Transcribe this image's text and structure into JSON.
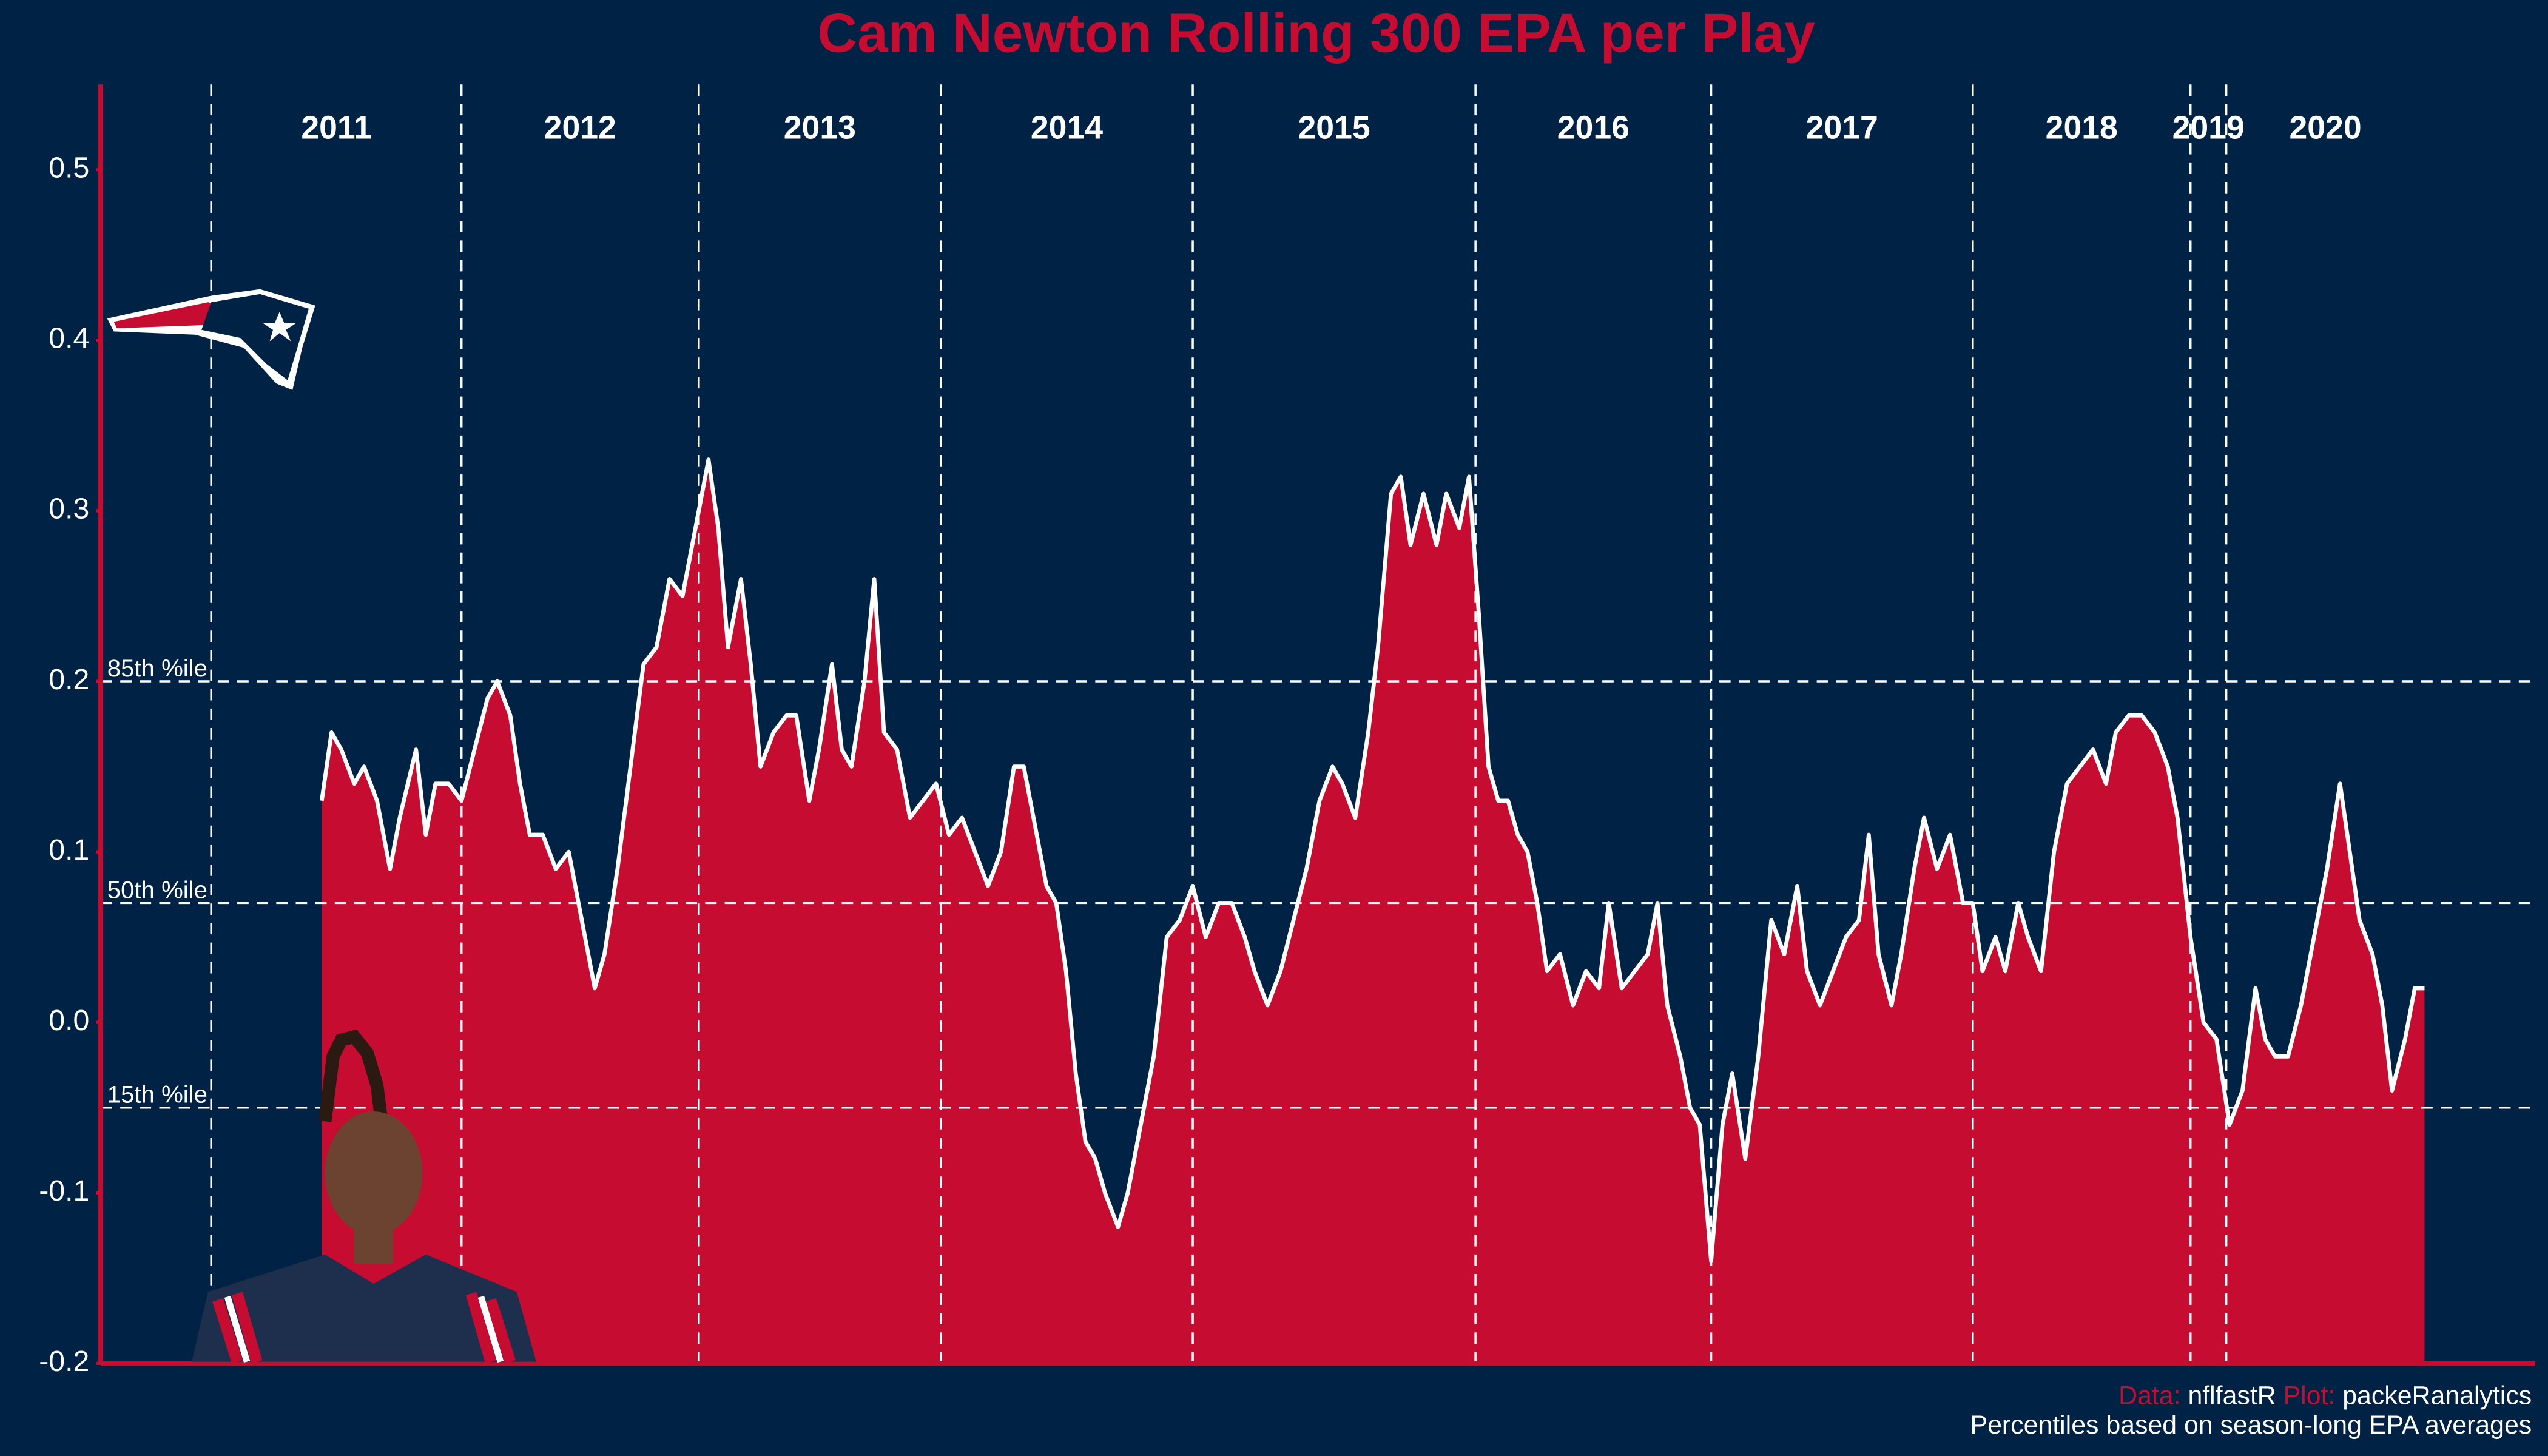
{
  "chart_data": {
    "type": "area",
    "title": "Cam Newton Rolling 300 EPA per Play",
    "caption": {
      "data_label": "Data:",
      "data_source": "nflfastR",
      "plot_label": "Plot:",
      "plot_source": "packeRanalytics",
      "note": "Percentiles based on season-long EPA averages"
    },
    "color": "#c60c30",
    "line_color": "#ffffff",
    "background": "#002244",
    "xlim": [
      -340,
      7150
    ],
    "ylim": [
      -0.2,
      0.55
    ],
    "yticks": [
      -0.2,
      -0.1,
      {
        "value": 0,
        "label": "0.0"
      },
      0.1,
      0.2,
      0.3,
      0.4,
      0.5
    ],
    "seasons": [
      {
        "label": "2011",
        "start": 0
      },
      {
        "label": "2012",
        "start": 770
      },
      {
        "label": "2013",
        "start": 1500
      },
      {
        "label": "2014",
        "start": 2245
      },
      {
        "label": "2015",
        "start": 3020
      },
      {
        "label": "2016",
        "start": 3890
      },
      {
        "label": "2017",
        "start": 4615
      },
      {
        "label": "2018",
        "start": 5420
      },
      {
        "label": "2019",
        "start": 6090
      },
      {
        "label": "2020",
        "start": 6200
      }
    ],
    "reference_lines": [
      {
        "label": "85th %ile",
        "value": 0.2
      },
      {
        "label": "50th %ile",
        "value": 0.07
      },
      {
        "label": "15th %ile",
        "value": -0.05
      }
    ],
    "x": [
      340,
      370,
      400,
      440,
      470,
      510,
      550,
      580,
      630,
      660,
      690,
      730,
      770,
      810,
      850,
      880,
      920,
      950,
      980,
      1020,
      1060,
      1100,
      1140,
      1180,
      1210,
      1250,
      1290,
      1330,
      1370,
      1410,
      1450,
      1490,
      1530,
      1560,
      1590,
      1630,
      1660,
      1690,
      1730,
      1770,
      1800,
      1840,
      1870,
      1910,
      1940,
      1970,
      2010,
      2040,
      2070,
      2110,
      2150,
      2190,
      2230,
      2270,
      2310,
      2350,
      2390,
      2430,
      2470,
      2500,
      2530,
      2570,
      2600,
      2630,
      2660,
      2690,
      2720,
      2750,
      2790,
      2820,
      2860,
      2900,
      2940,
      2980,
      3020,
      3060,
      3100,
      3140,
      3180,
      3210,
      3250,
      3290,
      3330,
      3370,
      3410,
      3450,
      3480,
      3520,
      3560,
      3590,
      3630,
      3660,
      3690,
      3730,
      3770,
      3800,
      3840,
      3870,
      3900,
      3930,
      3960,
      3990,
      4020,
      4050,
      4080,
      4110,
      4150,
      4190,
      4230,
      4270,
      4300,
      4340,
      4380,
      4420,
      4450,
      4480,
      4520,
      4550,
      4580,
      4615,
      4650,
      4680,
      4720,
      4760,
      4800,
      4840,
      4880,
      4910,
      4950,
      4990,
      5030,
      5070,
      5100,
      5130,
      5170,
      5200,
      5240,
      5270,
      5310,
      5350,
      5390,
      5420,
      5450,
      5490,
      5520,
      5560,
      5590,
      5630,
      5670,
      5710,
      5750,
      5790,
      5830,
      5860,
      5900,
      5940,
      5980,
      6020,
      6050,
      6090,
      6130,
      6170,
      6210,
      6250,
      6290,
      6320,
      6350,
      6390,
      6430,
      6470,
      6510,
      6550,
      6580,
      6610,
      6650,
      6680,
      6710,
      6750,
      6780,
      6810
    ],
    "values": [
      0.13,
      0.17,
      0.16,
      0.14,
      0.15,
      0.13,
      0.09,
      0.12,
      0.16,
      0.11,
      0.14,
      0.14,
      0.13,
      0.16,
      0.19,
      0.2,
      0.18,
      0.14,
      0.11,
      0.11,
      0.09,
      0.1,
      0.06,
      0.02,
      0.04,
      0.09,
      0.15,
      0.21,
      0.22,
      0.26,
      0.25,
      0.29,
      0.33,
      0.29,
      0.22,
      0.26,
      0.21,
      0.15,
      0.17,
      0.18,
      0.18,
      0.13,
      0.16,
      0.21,
      0.16,
      0.15,
      0.2,
      0.26,
      0.17,
      0.16,
      0.12,
      0.13,
      0.14,
      0.11,
      0.12,
      0.1,
      0.08,
      0.1,
      0.15,
      0.15,
      0.12,
      0.08,
      0.07,
      0.03,
      -0.03,
      -0.07,
      -0.08,
      -0.1,
      -0.12,
      -0.1,
      -0.06,
      -0.02,
      0.05,
      0.06,
      0.08,
      0.05,
      0.07,
      0.07,
      0.05,
      0.03,
      0.01,
      0.03,
      0.06,
      0.09,
      0.13,
      0.15,
      0.14,
      0.12,
      0.17,
      0.22,
      0.31,
      0.32,
      0.28,
      0.31,
      0.28,
      0.31,
      0.29,
      0.32,
      0.24,
      0.15,
      0.13,
      0.13,
      0.11,
      0.1,
      0.07,
      0.03,
      0.04,
      0.01,
      0.03,
      0.02,
      0.07,
      0.02,
      0.03,
      0.04,
      0.07,
      0.01,
      -0.02,
      -0.05,
      -0.06,
      -0.14,
      -0.06,
      -0.03,
      -0.08,
      -0.02,
      0.06,
      0.04,
      0.08,
      0.03,
      0.01,
      0.03,
      0.05,
      0.06,
      0.11,
      0.04,
      0.01,
      0.04,
      0.09,
      0.12,
      0.09,
      0.11,
      0.07,
      0.07,
      0.03,
      0.05,
      0.03,
      0.07,
      0.05,
      0.03,
      0.1,
      0.14,
      0.15,
      0.16,
      0.14,
      0.17,
      0.18,
      0.18,
      0.17,
      0.15,
      0.12,
      0.05,
      0,
      -0.01,
      -0.06,
      -0.04,
      0.02,
      -0.01,
      -0.02,
      -0.02,
      0.01,
      0.05,
      0.09,
      0.14,
      0.1,
      0.06,
      0.04,
      0.01,
      -0.04,
      -0.01,
      0.02,
      0.02
    ]
  }
}
